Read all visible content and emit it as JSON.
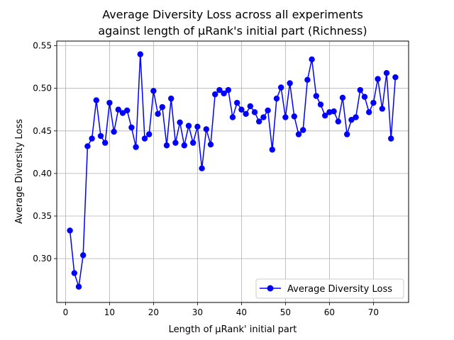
{
  "chart_data": {
    "type": "line",
    "title_line1": "Average Diversity Loss across all experiments",
    "title_line2": "against length of μRank's initial part (Richness)",
    "xlabel": "Length of μRank' initial part",
    "ylabel": "Average Diversity Loss",
    "xlim": [
      -2,
      78
    ],
    "ylim": [
      0.2485,
      0.5555
    ],
    "xticks": [
      0,
      10,
      20,
      30,
      40,
      50,
      60,
      70
    ],
    "yticks": [
      0.3,
      0.35,
      0.4,
      0.45,
      0.5,
      0.55
    ],
    "ytick_labels": [
      "0.30",
      "0.35",
      "0.40",
      "0.45",
      "0.50",
      "0.55"
    ],
    "grid": true,
    "legend_position": "lower-right",
    "series": [
      {
        "name": "Average Diversity Loss",
        "color": "#0000ff",
        "marker": "circle",
        "x": [
          1,
          2,
          3,
          4,
          5,
          6,
          7,
          8,
          9,
          10,
          11,
          12,
          13,
          14,
          15,
          16,
          17,
          18,
          19,
          20,
          21,
          22,
          23,
          24,
          25,
          26,
          27,
          28,
          29,
          30,
          31,
          32,
          33,
          34,
          35,
          36,
          37,
          38,
          39,
          40,
          41,
          42,
          43,
          44,
          45,
          46,
          47,
          48,
          49,
          50,
          51,
          52,
          53,
          54,
          55,
          56,
          57,
          58,
          59,
          60,
          61,
          62,
          63,
          64,
          65,
          66,
          67,
          68,
          69,
          70,
          71,
          72,
          73,
          74,
          75
        ],
        "values": [
          0.333,
          0.283,
          0.267,
          0.304,
          0.432,
          0.441,
          0.486,
          0.444,
          0.436,
          0.483,
          0.449,
          0.475,
          0.471,
          0.474,
          0.454,
          0.431,
          0.54,
          0.441,
          0.446,
          0.497,
          0.47,
          0.478,
          0.433,
          0.488,
          0.436,
          0.46,
          0.433,
          0.456,
          0.436,
          0.455,
          0.406,
          0.452,
          0.434,
          0.493,
          0.498,
          0.494,
          0.498,
          0.466,
          0.483,
          0.475,
          0.47,
          0.479,
          0.472,
          0.461,
          0.466,
          0.474,
          0.428,
          0.488,
          0.501,
          0.466,
          0.506,
          0.467,
          0.446,
          0.451,
          0.51,
          0.534,
          0.491,
          0.481,
          0.468,
          0.472,
          0.473,
          0.461,
          0.489,
          0.446,
          0.463,
          0.466,
          0.498,
          0.49,
          0.472,
          0.483,
          0.511,
          0.476,
          0.518,
          0.441,
          0.513
        ]
      }
    ]
  }
}
